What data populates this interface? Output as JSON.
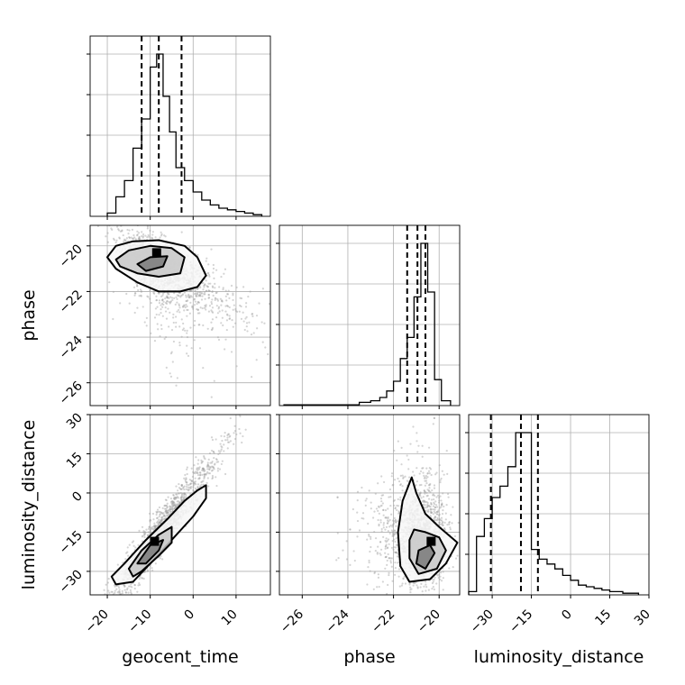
{
  "chart_data": {
    "type": "corner",
    "parameters": [
      "geocent_time",
      "phase",
      "luminosity_distance"
    ],
    "axis_labels": {
      "x": [
        "geocent_time",
        "phase",
        "luminosity_distance"
      ],
      "y": [
        "",
        "phase",
        "luminosity_distance"
      ]
    },
    "ranges": {
      "geocent_time": [
        -24,
        18
      ],
      "phase": [
        -27,
        -19.1
      ],
      "luminosity_distance": [
        -39,
        30
      ]
    },
    "ticks": {
      "geocent_time": [
        -20,
        -10,
        0,
        10
      ],
      "phase": [
        -26,
        -24,
        -22,
        -20
      ],
      "luminosity_distance": [
        -30,
        -15,
        0,
        15,
        30
      ]
    },
    "tick_labels": {
      "geocent_time": [
        "−20",
        "−10",
        "0",
        "10"
      ],
      "phase": [
        "−26",
        "−24",
        "−22",
        "−20"
      ],
      "luminosity_distance": [
        "−30",
        "−15",
        "0",
        "15",
        "30"
      ]
    },
    "quantiles": {
      "geocent_time": [
        -12,
        -8,
        -2.7
      ],
      "phase": [
        -21.4,
        -20.95,
        -20.6
      ],
      "luminosity_distance": [
        -30.5,
        -19,
        -12.5
      ]
    },
    "histograms": {
      "geocent_time": {
        "edges": [
          -20,
          -18,
          -16,
          -14,
          -12,
          -10,
          -8.5,
          -7,
          -5.5,
          -4,
          -2,
          0,
          2,
          4,
          6,
          8,
          10,
          12,
          14,
          16
        ],
        "counts": [
          2,
          12,
          22,
          42,
          60,
          92,
          100,
          74,
          52,
          30,
          22,
          15,
          10,
          7,
          5,
          4,
          3,
          2,
          1
        ]
      },
      "phase": {
        "edges": [
          -26.8,
          -23.5,
          -23,
          -22.6,
          -22.3,
          -22,
          -21.7,
          -21.4,
          -21.1,
          -20.8,
          -20.5,
          -20.2,
          -19.9,
          -19.5
        ],
        "counts": [
          0.5,
          2,
          3,
          5,
          9,
          15,
          29,
          42,
          67,
          100,
          70,
          16,
          3
        ]
      },
      "luminosity_distance": {
        "edges": [
          -39,
          -36,
          -33,
          -30,
          -27,
          -24,
          -21,
          -18,
          -15,
          -12,
          -9,
          -6,
          -3,
          0,
          3,
          6,
          9,
          12,
          15,
          20,
          26
        ],
        "counts": [
          2,
          36,
          47,
          60,
          67,
          79,
          100,
          100,
          28,
          22,
          19,
          16,
          12,
          9,
          6,
          5,
          4,
          3,
          2,
          1
        ]
      }
    },
    "grid": true
  }
}
